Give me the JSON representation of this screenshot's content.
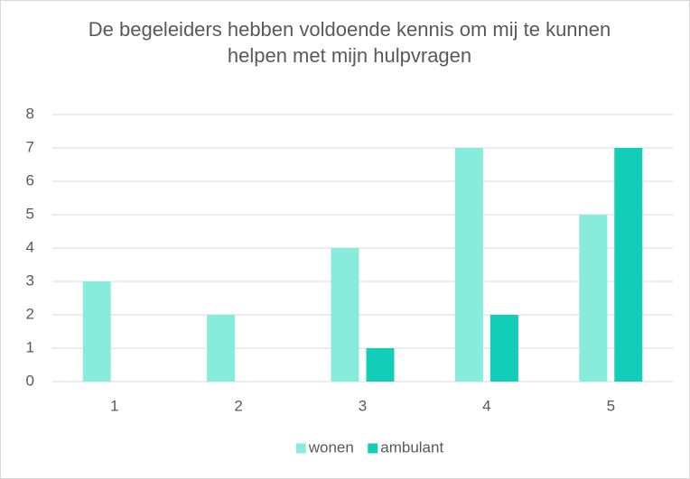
{
  "chart_data": {
    "type": "bar",
    "title": "De begeleiders hebben voldoende kennis om mij te kunnen helpen met mijn hulpvragen",
    "categories": [
      "1",
      "2",
      "3",
      "4",
      "5"
    ],
    "series": [
      {
        "name": "wonen",
        "color": "#88ecdc",
        "values": [
          3,
          2,
          4,
          7,
          5
        ]
      },
      {
        "name": "ambulant",
        "color": "#12cdb7",
        "values": [
          0,
          0,
          1,
          2,
          7
        ]
      }
    ],
    "ylim": [
      0,
      8
    ],
    "yticks": [
      0,
      1,
      2,
      3,
      4,
      5,
      6,
      7,
      8
    ],
    "grid": true,
    "legend": "bottom"
  }
}
